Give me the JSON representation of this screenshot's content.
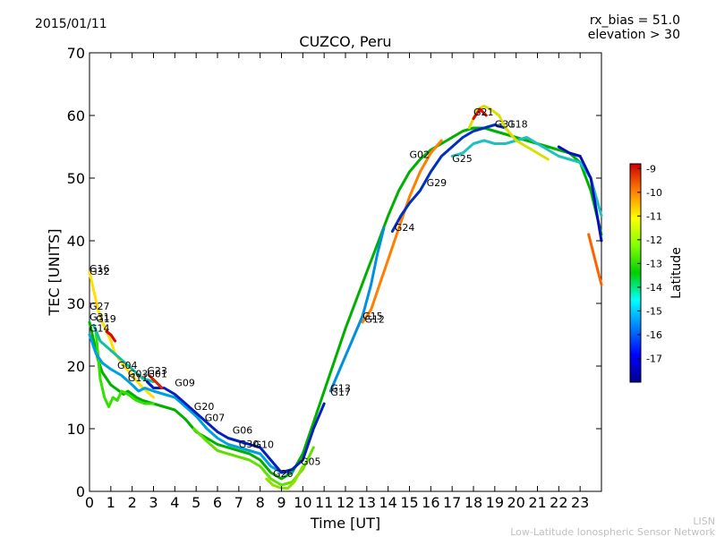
{
  "header": {
    "date": "2015/01/11",
    "info_line1": "rx_bias = 51.0",
    "info_line2": "elevation > 30"
  },
  "footer": {
    "credit_line1": "LISN",
    "credit_line2": "Low-Latitude Ionospheric Sensor Network"
  },
  "chart_data": {
    "type": "line",
    "title": "CUZCO, Peru",
    "xlabel": "Time [UT]",
    "ylabel": "TEC [UNITS]",
    "xlim": [
      0,
      24
    ],
    "ylim": [
      0,
      70
    ],
    "x_ticks": [
      "0",
      "1",
      "2",
      "3",
      "4",
      "5",
      "6",
      "7",
      "8",
      "9",
      "10",
      "11",
      "12",
      "13",
      "14",
      "15",
      "16",
      "17",
      "18",
      "19",
      "20",
      "21",
      "22",
      "23"
    ],
    "y_ticks": [
      "0",
      "10",
      "20",
      "30",
      "40",
      "50",
      "60",
      "70"
    ],
    "grid": false,
    "colorbar": {
      "label": "Latitude",
      "range": [
        -18,
        -8.8
      ],
      "ticks": [
        "-9",
        "-10",
        "-11",
        "-12",
        "-13",
        "-14",
        "-15",
        "-16",
        "-17"
      ]
    },
    "satellite_labels": [
      {
        "name": "G16",
        "x": 0.0,
        "y": 35.0
      },
      {
        "name": "G32",
        "x": 0.0,
        "y": 34.6
      },
      {
        "name": "G27",
        "x": 0.0,
        "y": 29.0
      },
      {
        "name": "G31",
        "x": 0.0,
        "y": 27.3
      },
      {
        "name": "G19",
        "x": 0.3,
        "y": 27.0
      },
      {
        "name": "G14",
        "x": 0.0,
        "y": 25.5
      },
      {
        "name": "G04",
        "x": 1.3,
        "y": 19.6
      },
      {
        "name": "G03",
        "x": 1.8,
        "y": 18.2
      },
      {
        "name": "G11",
        "x": 1.8,
        "y": 17.6
      },
      {
        "name": "G23",
        "x": 2.7,
        "y": 18.7
      },
      {
        "name": "G01",
        "x": 2.7,
        "y": 18.2
      },
      {
        "name": "G09",
        "x": 4.0,
        "y": 16.8
      },
      {
        "name": "G20",
        "x": 4.9,
        "y": 13.0
      },
      {
        "name": "G07",
        "x": 5.4,
        "y": 11.2
      },
      {
        "name": "G06",
        "x": 6.7,
        "y": 9.2
      },
      {
        "name": "G30",
        "x": 7.0,
        "y": 7.0
      },
      {
        "name": "G10",
        "x": 7.7,
        "y": 6.9
      },
      {
        "name": "G26",
        "x": 8.6,
        "y": 2.3
      },
      {
        "name": "G05",
        "x": 9.9,
        "y": 4.2
      },
      {
        "name": "G13",
        "x": 11.3,
        "y": 15.9
      },
      {
        "name": "G17",
        "x": 11.3,
        "y": 15.3
      },
      {
        "name": "G15",
        "x": 12.8,
        "y": 27.4
      },
      {
        "name": "G12",
        "x": 12.9,
        "y": 26.9
      },
      {
        "name": "G24",
        "x": 14.3,
        "y": 41.6
      },
      {
        "name": "G02",
        "x": 15.0,
        "y": 53.2
      },
      {
        "name": "G29",
        "x": 15.8,
        "y": 48.7
      },
      {
        "name": "G25",
        "x": 17.0,
        "y": 52.6
      },
      {
        "name": "G21",
        "x": 18.0,
        "y": 60.0
      },
      {
        "name": "G31",
        "x": 19.0,
        "y": 58.1
      },
      {
        "name": "G18",
        "x": 19.6,
        "y": 58.1
      }
    ],
    "series": [
      {
        "color": "#ffe000",
        "x": [
          0,
          0.2,
          0.4,
          0.6,
          0.8,
          1.0,
          1.2,
          1.5,
          2.0,
          2.5,
          3.0
        ],
        "values": [
          35,
          32,
          29,
          27,
          25.5,
          24,
          22,
          20.5,
          18.5,
          16.5,
          15
        ]
      },
      {
        "color": "#00b000",
        "x": [
          0,
          0.2,
          0.4,
          0.6,
          0.8,
          1.0,
          1.2,
          1.4,
          1.6,
          1.8,
          2.0,
          2.2,
          2.5,
          3.0,
          3.5,
          4.0,
          4.5,
          5.0,
          5.5,
          6.0,
          6.5,
          7.0,
          7.5,
          8.0,
          8.5,
          9.0,
          9.5,
          10.0,
          10.5,
          11.0,
          11.5,
          12.0,
          12.5,
          13.0,
          13.5,
          14.0,
          14.5,
          15.0,
          15.5,
          16.0,
          16.5,
          17.0,
          17.5,
          18.0,
          18.5,
          19.0,
          19.5,
          20.0,
          20.5,
          21.0,
          21.5,
          22.0,
          22.5,
          23.0,
          23.5,
          24.0
        ],
        "values": [
          27,
          24,
          21,
          19,
          18,
          17,
          16.5,
          16,
          15.5,
          16,
          15.5,
          15,
          14.5,
          14,
          13.5,
          13,
          11.5,
          9.5,
          8.5,
          7.5,
          7,
          6.5,
          6,
          5,
          3,
          2,
          3,
          6,
          11,
          16,
          21,
          26,
          30.5,
          35,
          39.5,
          44,
          48,
          51,
          53,
          54.5,
          55.5,
          56.5,
          57.5,
          58,
          58,
          57.5,
          57,
          56.5,
          56,
          55.5,
          55,
          54.5,
          54,
          52.5,
          48,
          41
        ]
      },
      {
        "color": "#33e000",
        "x": [
          0.3,
          0.5,
          0.7,
          0.9,
          1.1,
          1.3,
          1.5,
          1.8,
          2.2,
          2.6,
          3.0
        ],
        "values": [
          25.5,
          18,
          15,
          13.5,
          15,
          14.5,
          16,
          15.5,
          14.5,
          14,
          14
        ]
      },
      {
        "color": "#00a0e0",
        "x": [
          0,
          0.3,
          0.6,
          1.0,
          1.5,
          2.0,
          2.3,
          2.6,
          3.0,
          3.5,
          4.0,
          4.5,
          5.0,
          5.5,
          6.0,
          6.5,
          7.0,
          7.5,
          8.0,
          8.5,
          9.0,
          9.5
        ],
        "values": [
          25,
          22,
          20.5,
          19.5,
          18.5,
          17,
          16,
          16.5,
          16,
          15.5,
          15,
          13.5,
          12,
          10,
          8.5,
          7.5,
          7,
          6.5,
          6,
          4,
          3,
          3
        ]
      },
      {
        "color": "#10c0a0",
        "x": [
          0.2,
          0.5,
          1.0,
          1.5,
          2.0,
          2.5,
          3.0
        ],
        "values": [
          26.5,
          24,
          22.5,
          21,
          19.5,
          18,
          17.5
        ]
      },
      {
        "color": "#0020c0",
        "x": [
          2.7,
          3.0,
          3.5,
          4.0,
          4.5,
          5.0,
          5.5,
          6.0,
          6.5,
          7.0,
          7.5,
          8.0,
          8.5,
          9.0,
          9.5,
          10.0,
          10.5,
          11.0
        ],
        "values": [
          17.5,
          16.5,
          16.5,
          15.5,
          14,
          12.5,
          11,
          9.5,
          8.5,
          8,
          7.5,
          7,
          5,
          3,
          3.5,
          5,
          10,
          14
        ]
      },
      {
        "color": "#60e000",
        "x": [
          4.9,
          5.5,
          6.0,
          6.5,
          7.0,
          7.5,
          8.0,
          8.5,
          9.0,
          9.5,
          10.0,
          10.5
        ],
        "values": [
          10,
          8,
          6.5,
          6,
          5.5,
          5,
          4,
          2,
          1,
          1.5,
          3.5,
          7
        ]
      },
      {
        "color": "#90e000",
        "x": [
          8.3,
          8.6,
          9.0,
          9.3,
          9.6,
          10.0
        ],
        "values": [
          2,
          1,
          0.5,
          0.5,
          1.5,
          4
        ]
      },
      {
        "color": "#ff8000",
        "x": [
          12.8,
          13.2,
          13.6,
          14.0,
          14.5,
          15.0,
          15.5,
          16.0,
          16.5
        ],
        "values": [
          27,
          29,
          33,
          37,
          42,
          47,
          51,
          54,
          56
        ]
      },
      {
        "color": "#0090e0",
        "x": [
          11.3,
          11.8,
          12.3,
          12.8,
          13.2,
          13.5,
          13.8
        ],
        "values": [
          16,
          20,
          24,
          28,
          33,
          38,
          42
        ]
      },
      {
        "color": "#0030c0",
        "x": [
          14.2,
          14.6,
          15.0,
          15.5,
          16.0,
          16.5,
          17.0,
          17.5,
          18.0,
          18.5,
          19.0,
          19.5
        ],
        "values": [
          41.5,
          44,
          46,
          48,
          51,
          53.5,
          55,
          56.5,
          57.5,
          58,
          58.5,
          58
        ]
      },
      {
        "color": "#20c0c0",
        "x": [
          17.0,
          17.5,
          18.0,
          18.5,
          19.0,
          19.5,
          20.0,
          20.5,
          21.0,
          21.5,
          22.0,
          22.5,
          23.0,
          23.5,
          24.0
        ],
        "values": [
          53.5,
          54,
          55.5,
          56,
          55.5,
          55.5,
          56,
          56.5,
          55.5,
          54.5,
          53.5,
          53,
          52.5,
          50,
          44
        ]
      },
      {
        "color": "#d8e000",
        "x": [
          17.8,
          18.2,
          18.5,
          18.8,
          19.2,
          19.5,
          20.0,
          20.5,
          21.0,
          21.5
        ],
        "values": [
          58,
          61,
          61.5,
          61,
          60,
          58,
          56,
          55,
          54,
          53
        ]
      },
      {
        "color": "#e01000",
        "x": [
          18.0,
          18.3,
          18.6
        ],
        "values": [
          59.5,
          61,
          60
        ]
      },
      {
        "color": "#0010c0",
        "x": [
          22.0,
          22.5,
          23.0,
          23.5,
          24.0
        ],
        "values": [
          55,
          54,
          53.5,
          50,
          40
        ]
      },
      {
        "color": "#ff6000",
        "x": [
          23.4,
          23.7,
          24.0
        ],
        "values": [
          41,
          37,
          33
        ]
      },
      {
        "color": "#e00000",
        "x": [
          0.8,
          1.0,
          1.2
        ],
        "values": [
          25.5,
          25,
          24
        ]
      },
      {
        "color": "#e02000",
        "x": [
          2.8,
          3.1,
          3.4
        ],
        "values": [
          18.5,
          17.5,
          16.5
        ]
      }
    ]
  }
}
